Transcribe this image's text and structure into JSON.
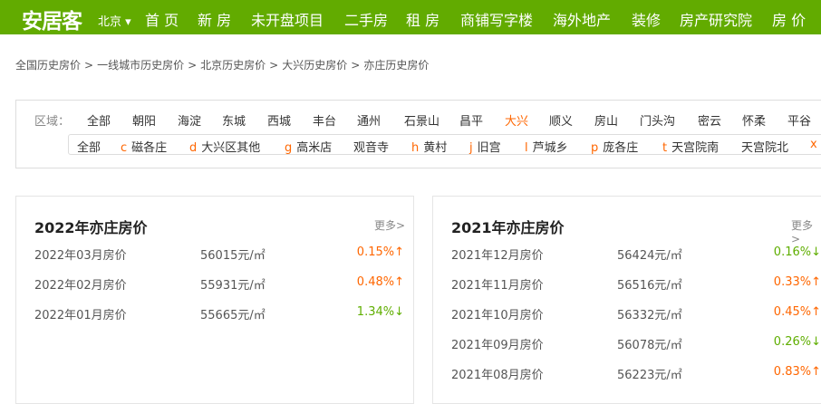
{
  "header": {
    "logo": "安居客",
    "city": "北京 ▾",
    "nav": [
      "首 页",
      "新 房",
      "未开盘项目",
      "二手房",
      "租 房",
      "商铺写字楼",
      "海外地产",
      "装修",
      "房产研究院",
      "房 价"
    ]
  },
  "breadcrumb": [
    "全国历史房价",
    ">",
    "一线城市历史房价",
    ">",
    "北京历史房价",
    ">",
    "大兴历史房价",
    ">",
    "亦庄历史房价"
  ],
  "filter": {
    "label": "区域：",
    "districts": [
      "全部",
      "朝阳",
      "海淀",
      "东城",
      "西城",
      "丰台",
      "通州",
      "石景山",
      "昌平",
      "大兴",
      "顺义",
      "房山",
      "门头沟",
      "密云",
      "怀柔",
      "平谷"
    ],
    "active": "大兴",
    "subareas": [
      {
        "letter": "",
        "name": "全部"
      },
      {
        "letter": "c",
        "name": "磁各庄"
      },
      {
        "letter": "d",
        "name": "大兴区其他"
      },
      {
        "letter": "g",
        "name": "高米店"
      },
      {
        "letter": "",
        "name": "观音寺"
      },
      {
        "letter": "h",
        "name": "黄村"
      },
      {
        "letter": "j",
        "name": "旧宫"
      },
      {
        "letter": "l",
        "name": "芦城乡"
      },
      {
        "letter": "p",
        "name": "庞各庄"
      },
      {
        "letter": "t",
        "name": "天宫院南"
      },
      {
        "letter": "",
        "name": "天宫院北"
      },
      {
        "letter": "x",
        "name": ""
      }
    ]
  },
  "cards": [
    {
      "title": "2022年亦庄房价",
      "more": "更多>",
      "rows": [
        {
          "month": "2022年03月房价",
          "price": "56015元/㎡",
          "change": "0.15%↑",
          "dir": "up"
        },
        {
          "month": "2022年02月房价",
          "price": "55931元/㎡",
          "change": "0.48%↑",
          "dir": "up"
        },
        {
          "month": "2022年01月房价",
          "price": "55665元/㎡",
          "change": "1.34%↓",
          "dir": "down"
        }
      ]
    },
    {
      "title": "2021年亦庄房价",
      "more": "更多>",
      "rows": [
        {
          "month": "2021年12月房价",
          "price": "56424元/㎡",
          "change": "0.16%↓",
          "dir": "down"
        },
        {
          "month": "2021年11月房价",
          "price": "56516元/㎡",
          "change": "0.33%↑",
          "dir": "up"
        },
        {
          "month": "2021年10月房价",
          "price": "56332元/㎡",
          "change": "0.45%↑",
          "dir": "up"
        },
        {
          "month": "2021年09月房价",
          "price": "56078元/㎡",
          "change": "0.26%↓",
          "dir": "down"
        },
        {
          "month": "2021年08月房价",
          "price": "56223元/㎡",
          "change": "0.83%↑",
          "dir": "up"
        }
      ]
    }
  ],
  "colors": {
    "brand": "#62ab00",
    "up": "#ff6600",
    "down": "#5fae00"
  }
}
